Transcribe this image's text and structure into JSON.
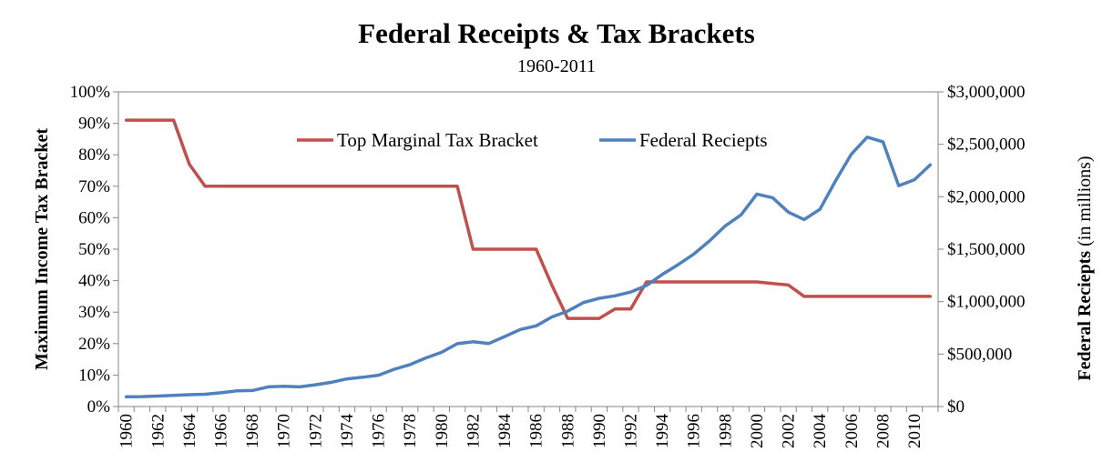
{
  "chart_data": {
    "type": "line",
    "title": "Federal Receipts & Tax Brackets",
    "subtitle": "1960-2011",
    "y_left_label": "Maximum Income Tax Bracket",
    "y_right_label_bold": "Federal Reciepts",
    "y_right_label_normal": "(in millions)",
    "y_left_range": [
      0,
      100
    ],
    "y_left_ticks": [
      "0%",
      "10%",
      "20%",
      "30%",
      "40%",
      "50%",
      "60%",
      "70%",
      "80%",
      "90%",
      "100%"
    ],
    "y_right_range": [
      0,
      3000000
    ],
    "y_right_ticks": [
      "$0",
      "$500,000",
      "$1,000,000",
      "$1,500,000",
      "$2,000,000",
      "$2,500,000",
      "$3,000,000"
    ],
    "x_range": [
      1960,
      2011
    ],
    "x_tick_labels": [
      "1960",
      "1962",
      "1964",
      "1966",
      "1968",
      "1970",
      "1972",
      "1974",
      "1976",
      "1978",
      "1980",
      "1982",
      "1984",
      "1986",
      "1988",
      "1990",
      "1992",
      "1994",
      "1996",
      "1998",
      "2000",
      "2002",
      "2004",
      "2006",
      "2008",
      "2010"
    ],
    "legend_position": "top-center",
    "grid": false,
    "colors": {
      "tax": "#c0504d",
      "receipts": "#4f81bd"
    },
    "x": [
      1960,
      1961,
      1962,
      1963,
      1964,
      1965,
      1966,
      1967,
      1968,
      1969,
      1970,
      1971,
      1972,
      1973,
      1974,
      1975,
      1976,
      1977,
      1978,
      1979,
      1980,
      1981,
      1982,
      1983,
      1984,
      1985,
      1986,
      1987,
      1988,
      1989,
      1990,
      1991,
      1992,
      1993,
      1994,
      1995,
      1996,
      1997,
      1998,
      1999,
      2000,
      2001,
      2002,
      2003,
      2004,
      2005,
      2006,
      2007,
      2008,
      2009,
      2010,
      2011
    ],
    "series": [
      {
        "name": "Top Marginal Tax Bracket",
        "axis": "left",
        "values": [
          91,
          91,
          91,
          91,
          77,
          70,
          70,
          70,
          70,
          70,
          70,
          70,
          70,
          70,
          70,
          70,
          70,
          70,
          70,
          70,
          70,
          70,
          50,
          50,
          50,
          50,
          50,
          38.5,
          28,
          28,
          28,
          31,
          31,
          39.6,
          39.6,
          39.6,
          39.6,
          39.6,
          39.6,
          39.6,
          39.6,
          39.1,
          38.6,
          35,
          35,
          35,
          35,
          35,
          35,
          35,
          35,
          35
        ]
      },
      {
        "name": "Federal Reciepts",
        "axis": "right",
        "values": [
          92492,
          94388,
          99676,
          106560,
          112613,
          116817,
          130835,
          148822,
          152973,
          186882,
          192807,
          187139,
          207309,
          230799,
          263224,
          279090,
          298060,
          355559,
          399561,
          463302,
          517112,
          599272,
          617766,
          600562,
          666438,
          734037,
          769155,
          854288,
          909238,
          991105,
          1031958,
          1054988,
          1091208,
          1154335,
          1258566,
          1351790,
          1453053,
          1579232,
          1721728,
          1827452,
          2025191,
          1991082,
          1853136,
          1782314,
          1880114,
          2153611,
          2406869,
          2567985,
          2523991,
          2104989,
          2162706,
          2303466
        ]
      }
    ]
  }
}
